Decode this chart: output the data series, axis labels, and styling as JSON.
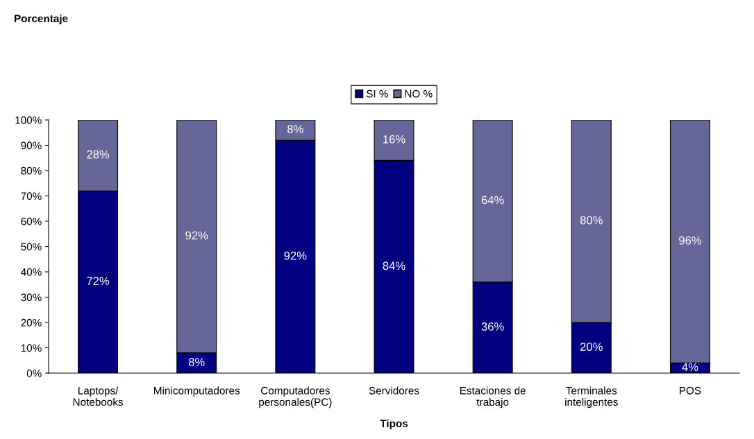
{
  "chart_data": {
    "type": "bar",
    "stacked": true,
    "annotations": [
      "Porcentaje"
    ],
    "xlabel": "Tipos",
    "categories": [
      "Laptops/\nNotebooks",
      "Minicomputadores",
      "Computadores\npersonales(PC)",
      "Servidores",
      "Estaciones de\ntrabajo",
      "Terminales\ninteligentes",
      "POS"
    ],
    "series": [
      {
        "name": "SI %",
        "color": "#000080",
        "values": [
          72,
          8,
          92,
          84,
          36,
          20,
          4
        ],
        "value_labels": [
          "72%",
          "8%",
          "92%",
          "84%",
          "36%",
          "20%",
          "4%"
        ]
      },
      {
        "name": "NO %",
        "color": "#666699",
        "values": [
          28,
          92,
          8,
          16,
          64,
          80,
          96
        ],
        "value_labels": [
          "28%",
          "92%",
          "8%",
          "16%",
          "64%",
          "80%",
          "96%"
        ]
      }
    ],
    "ylim": [
      0,
      100
    ],
    "yticks": [
      {
        "value": 0,
        "label": "0%"
      },
      {
        "value": 10,
        "label": "10%"
      },
      {
        "value": 20,
        "label": "20%"
      },
      {
        "value": 30,
        "label": "30%"
      },
      {
        "value": 40,
        "label": "40%"
      },
      {
        "value": 50,
        "label": "50%"
      },
      {
        "value": 60,
        "label": "60%"
      },
      {
        "value": 70,
        "label": "70%"
      },
      {
        "value": 80,
        "label": "80%"
      },
      {
        "value": 90,
        "label": "90%"
      },
      {
        "value": 100,
        "label": "100%"
      }
    ],
    "grid": false,
    "legend": "top"
  }
}
